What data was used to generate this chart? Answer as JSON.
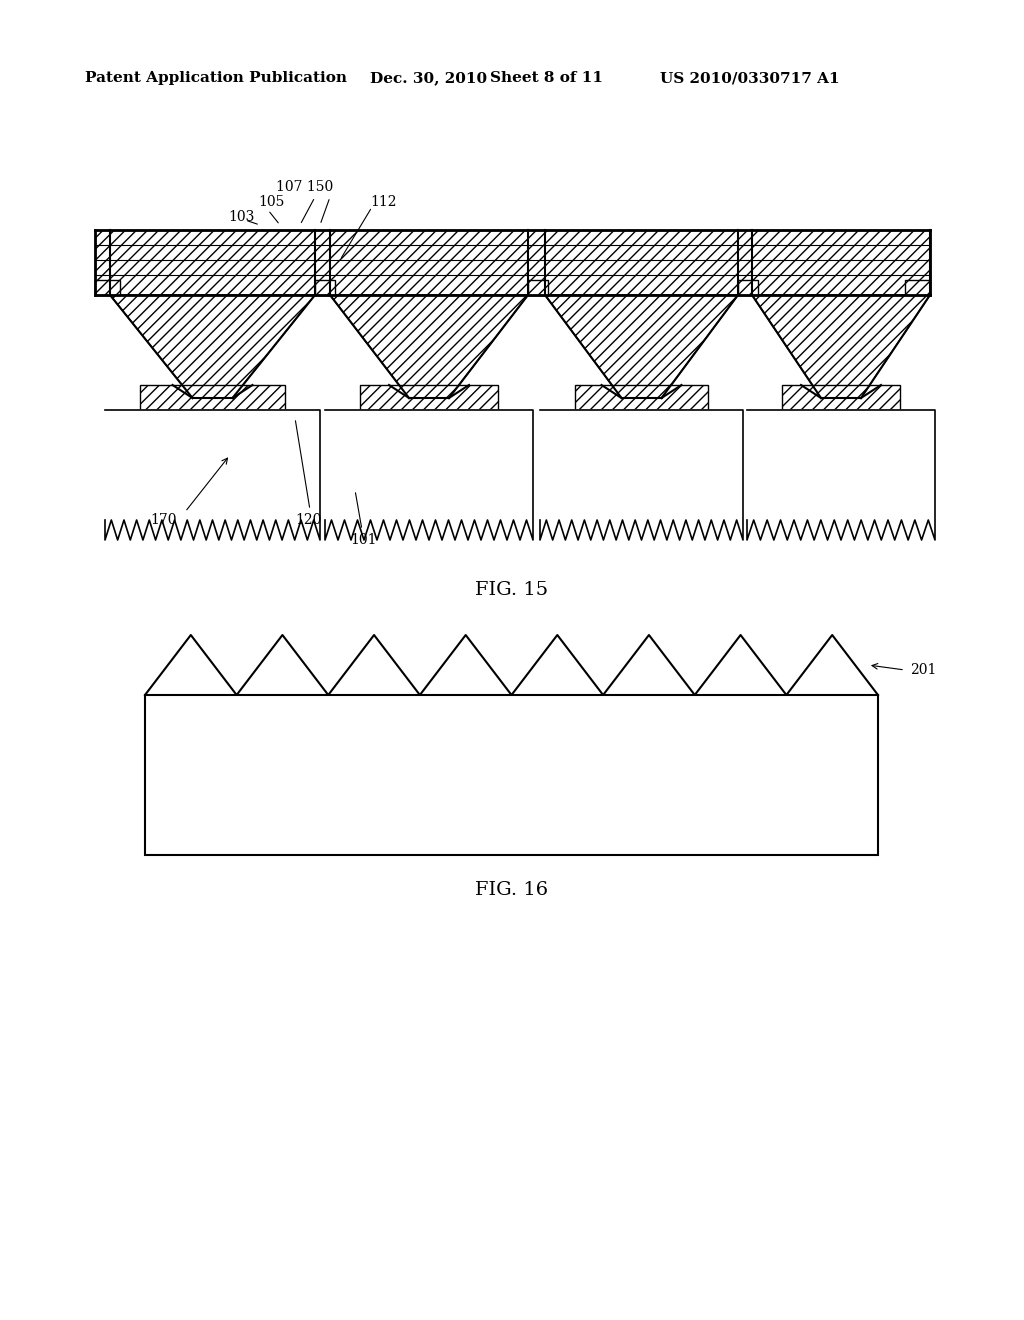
{
  "bg_color": "#ffffff",
  "header_text": "Patent Application Publication",
  "header_date": "Dec. 30, 2010",
  "header_sheet": "Sheet 8 of 11",
  "header_patent": "US 2010/0330717 A1",
  "fig15_label": "FIG. 15",
  "fig16_label": "FIG. 16",
  "label_103": "103",
  "label_105": "105",
  "label_107": "107",
  "label_150": "150",
  "label_112": "112",
  "label_170": "170",
  "label_120": "120",
  "label_101": "101",
  "label_201": "201"
}
